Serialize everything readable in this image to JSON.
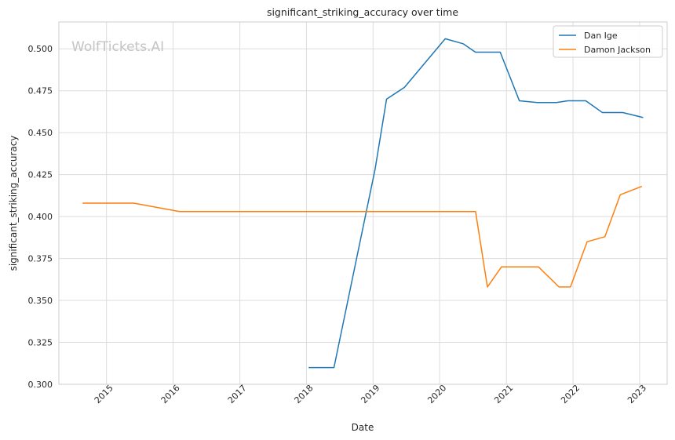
{
  "chart_data": {
    "type": "line",
    "title": "significant_striking_accuracy over time",
    "xlabel": "Date",
    "ylabel": "significant_striking_accuracy",
    "watermark": "WolfTickets.AI",
    "x_axis_type": "date",
    "xlim": [
      "2014-04-15",
      "2023-06-01"
    ],
    "ylim": [
      0.3,
      0.516
    ],
    "x_ticks": [
      "2015",
      "2016",
      "2017",
      "2018",
      "2019",
      "2020",
      "2021",
      "2022",
      "2023"
    ],
    "y_ticks": [
      "0.300",
      "0.325",
      "0.350",
      "0.375",
      "0.400",
      "0.425",
      "0.450",
      "0.475",
      "0.500"
    ],
    "grid": true,
    "legend_position": "top-right",
    "series": [
      {
        "name": "Dan Ige",
        "color": "#1f77b4",
        "points": [
          [
            "2018-01-13",
            0.31
          ],
          [
            "2018-06-01",
            0.31
          ],
          [
            "2019-01-12",
            0.428
          ],
          [
            "2019-03-16",
            0.47
          ],
          [
            "2019-06-22",
            0.477
          ],
          [
            "2020-02-01",
            0.506
          ],
          [
            "2020-05-09",
            0.503
          ],
          [
            "2020-07-15",
            0.498
          ],
          [
            "2020-11-28",
            0.498
          ],
          [
            "2021-03-13",
            0.469
          ],
          [
            "2021-06-19",
            0.468
          ],
          [
            "2021-10-02",
            0.468
          ],
          [
            "2021-12-04",
            0.469
          ],
          [
            "2022-03-12",
            0.469
          ],
          [
            "2022-06-11",
            0.462
          ],
          [
            "2022-10-01",
            0.462
          ],
          [
            "2023-01-21",
            0.459
          ]
        ]
      },
      {
        "name": "Damon Jackson",
        "color": "#ff7f0e",
        "points": [
          [
            "2014-08-23",
            0.408
          ],
          [
            "2015-05-30",
            0.408
          ],
          [
            "2016-02-06",
            0.403
          ],
          [
            "2020-07-16",
            0.403
          ],
          [
            "2020-09-19",
            0.358
          ],
          [
            "2020-12-05",
            0.37
          ],
          [
            "2021-06-26",
            0.37
          ],
          [
            "2021-10-16",
            0.358
          ],
          [
            "2021-12-18",
            0.358
          ],
          [
            "2022-03-19",
            0.385
          ],
          [
            "2022-06-25",
            0.388
          ],
          [
            "2022-09-17",
            0.413
          ],
          [
            "2023-01-14",
            0.418
          ]
        ]
      }
    ]
  }
}
